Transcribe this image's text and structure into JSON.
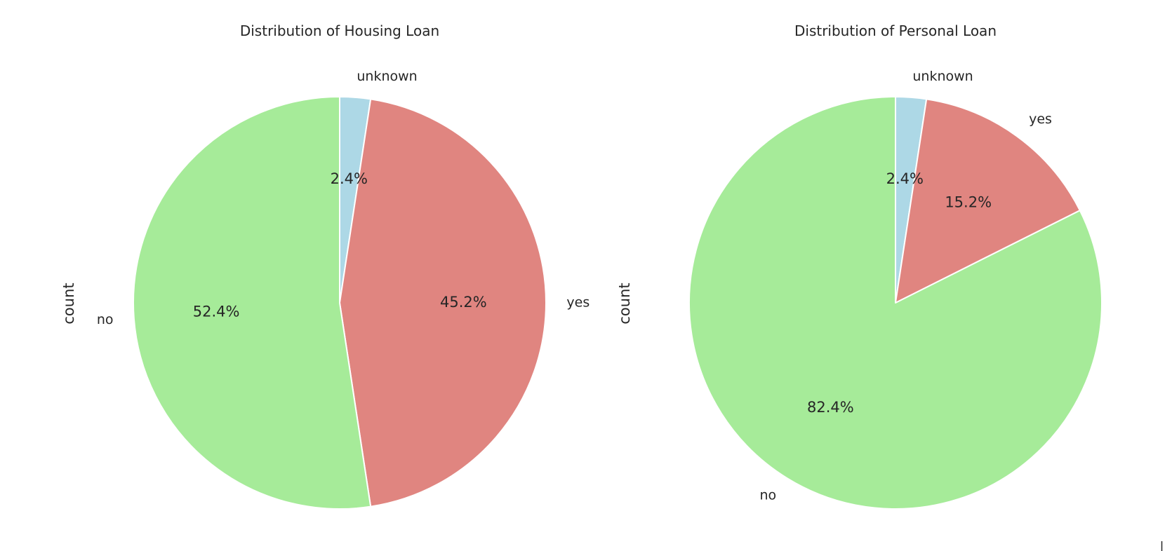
{
  "chart_data": [
    {
      "type": "pie",
      "title": "Distribution of Housing Loan",
      "ylabel": "count",
      "categories": [
        "unknown",
        "yes",
        "no"
      ],
      "values": [
        2.4,
        45.2,
        52.4
      ],
      "percent_labels": [
        "2.4%",
        "45.2%",
        "52.4%"
      ],
      "colors": [
        "#add8e6",
        "#e08580",
        "#a6eb99"
      ],
      "start_angle_deg": 90,
      "direction": "clockwise"
    },
    {
      "type": "pie",
      "title": "Distribution of Personal Loan",
      "ylabel": "count",
      "categories": [
        "unknown",
        "yes",
        "no"
      ],
      "values": [
        2.4,
        15.2,
        82.4
      ],
      "percent_labels": [
        "2.4%",
        "15.2%",
        "82.4%"
      ],
      "colors": [
        "#add8e6",
        "#e08580",
        "#a6eb99"
      ],
      "start_angle_deg": 90,
      "direction": "clockwise"
    }
  ]
}
